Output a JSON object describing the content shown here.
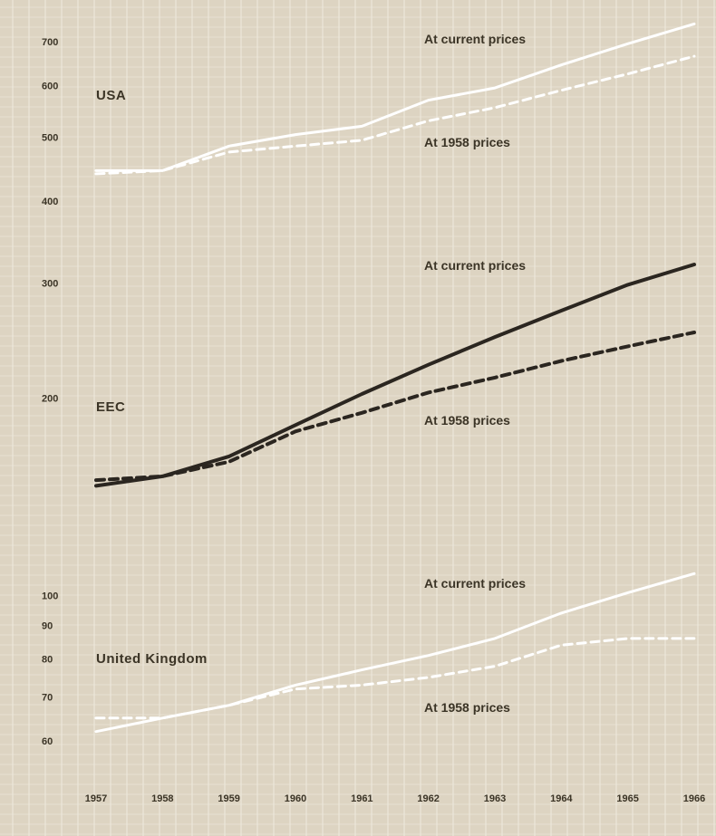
{
  "chart_data": {
    "type": "line",
    "y_scale": "log",
    "x": [
      "1957",
      "1958",
      "1959",
      "1960",
      "1961",
      "1962",
      "1963",
      "1964",
      "1965",
      "1966"
    ],
    "y_ticks": [
      60,
      70,
      80,
      90,
      100,
      200,
      300,
      400,
      500,
      600,
      700
    ],
    "y_tick_labels": [
      "60",
      "70",
      "80",
      "90",
      "100",
      "200",
      "300",
      "400",
      "500",
      "600",
      "700"
    ],
    "grid": true,
    "groups": [
      {
        "name": "USA",
        "series": [
          {
            "name": "At current prices",
            "style": "solid",
            "color": "#ffffff",
            "values": [
              445,
              445,
              485,
              505,
              520,
              570,
              595,
              645,
              695,
              745
            ]
          },
          {
            "name": "At 1958 prices",
            "style": "dashed",
            "color": "#ffffff",
            "values": [
              440,
              445,
              475,
              485,
              495,
              530,
              555,
              590,
              625,
              665
            ]
          }
        ]
      },
      {
        "name": "EEC",
        "series": [
          {
            "name": "At current prices",
            "style": "solid",
            "color": "#2b2620",
            "values": [
              147,
              152,
              163,
              182,
              203,
              225,
              248,
              272,
              298,
              320
            ]
          },
          {
            "name": "At 1958 prices",
            "style": "dashed",
            "color": "#2b2620",
            "values": [
              150,
              152,
              160,
              178,
              190,
              204,
              215,
              228,
              240,
              252
            ]
          }
        ]
      },
      {
        "name": "United Kingdom",
        "series": [
          {
            "name": "At current prices",
            "style": "solid",
            "color": "#ffffff",
            "values": [
              62,
              65,
              68,
              73,
              77,
              81,
              86,
              94,
              101,
              108
            ]
          },
          {
            "name": "At 1958 prices",
            "style": "dashed",
            "color": "#ffffff",
            "values": [
              65,
              65,
              68,
              72,
              73,
              75,
              78,
              84,
              86,
              86
            ]
          }
        ]
      }
    ],
    "colors": {
      "background": "#ddd4c2",
      "grid": "#f2ede3",
      "text": "#3b3426"
    }
  }
}
